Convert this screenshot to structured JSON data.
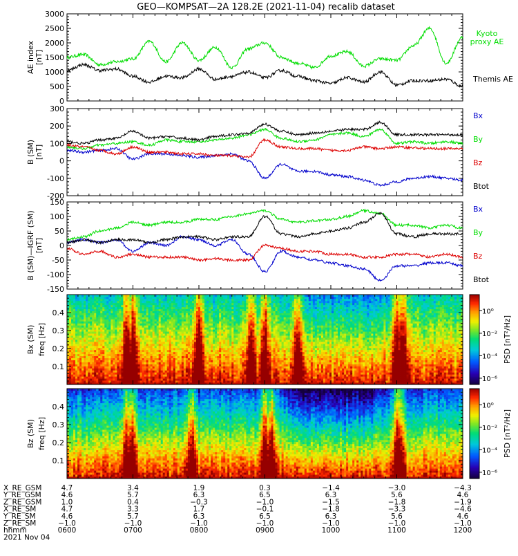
{
  "title": "GEO—KOMPSAT—2A 128.2E (2021-11-04) recalib dataset",
  "chart_data": [
    {
      "type": "line",
      "panel": "ae-index",
      "ylabel_lines": [
        "AE index",
        "[nT]"
      ],
      "ylim": [
        0,
        3000
      ],
      "yticks": [
        0,
        500,
        1000,
        1500,
        2000,
        2500,
        3000
      ],
      "series": [
        {
          "name_lines": [
            "Kyoto",
            "proxy AE"
          ],
          "color": "#00dd00",
          "x": [
            6.0,
            6.25,
            6.5,
            6.75,
            7.0,
            7.25,
            7.5,
            7.75,
            8.0,
            8.25,
            8.5,
            8.75,
            9.0,
            9.25,
            9.5,
            9.75,
            10.0,
            10.25,
            10.5,
            10.75,
            11.0,
            11.25,
            11.5,
            11.75,
            12.0
          ],
          "values": [
            1500,
            1600,
            1250,
            1350,
            1450,
            2050,
            1350,
            2000,
            1400,
            1850,
            1150,
            1800,
            2000,
            1500,
            1300,
            1150,
            1550,
            1700,
            1200,
            1450,
            1400,
            1900,
            2500,
            1300,
            2200
          ]
        },
        {
          "name_lines": [
            "Themis AE"
          ],
          "color": "#000000",
          "x": [
            6.0,
            6.25,
            6.5,
            6.75,
            7.0,
            7.25,
            7.5,
            7.75,
            8.0,
            8.25,
            8.5,
            8.75,
            9.0,
            9.25,
            9.5,
            9.75,
            10.0,
            10.25,
            10.5,
            10.75,
            11.0,
            11.25,
            11.5,
            11.75,
            12.0
          ],
          "values": [
            1050,
            1250,
            1050,
            1100,
            850,
            650,
            850,
            800,
            1100,
            750,
            850,
            1000,
            800,
            1050,
            850,
            700,
            600,
            800,
            650,
            1000,
            550,
            700,
            700,
            750,
            500
          ]
        }
      ]
    },
    {
      "type": "line",
      "panel": "b-sm",
      "ylabel_lines": [
        "B (SM)",
        "[nT]"
      ],
      "ylim": [
        -200,
        300
      ],
      "yticks": [
        -200,
        -100,
        0,
        100,
        200,
        300
      ],
      "series": [
        {
          "name": "Bx",
          "color": "#0000cc",
          "x": [
            6.0,
            6.25,
            6.5,
            6.75,
            7.0,
            7.25,
            7.5,
            7.75,
            8.0,
            8.25,
            8.5,
            8.75,
            9.0,
            9.25,
            9.5,
            9.75,
            10.0,
            10.25,
            10.5,
            10.75,
            11.0,
            11.25,
            11.5,
            11.75,
            12.0
          ],
          "values": [
            60,
            50,
            60,
            70,
            10,
            40,
            40,
            30,
            20,
            30,
            40,
            0,
            -100,
            -20,
            -60,
            -60,
            -80,
            -90,
            -110,
            -140,
            -120,
            -100,
            -90,
            -100,
            -110
          ]
        },
        {
          "name": "By",
          "color": "#00dd00",
          "x": [
            6.0,
            6.25,
            6.5,
            6.75,
            7.0,
            7.25,
            7.5,
            7.75,
            8.0,
            8.25,
            8.5,
            8.75,
            9.0,
            9.25,
            9.5,
            9.75,
            10.0,
            10.25,
            10.5,
            10.75,
            11.0,
            11.25,
            11.5,
            11.75,
            12.0
          ],
          "values": [
            80,
            70,
            90,
            100,
            110,
            90,
            120,
            110,
            110,
            120,
            130,
            150,
            180,
            130,
            110,
            120,
            150,
            160,
            140,
            180,
            100,
            110,
            100,
            110,
            100
          ]
        },
        {
          "name": "Bz",
          "color": "#dd0000",
          "x": [
            6.0,
            6.25,
            6.5,
            6.75,
            7.0,
            7.25,
            7.5,
            7.75,
            8.0,
            8.25,
            8.5,
            8.75,
            9.0,
            9.25,
            9.5,
            9.75,
            10.0,
            10.25,
            10.5,
            10.75,
            11.0,
            11.25,
            11.5,
            11.75,
            12.0
          ],
          "values": [
            90,
            80,
            60,
            40,
            80,
            50,
            50,
            40,
            40,
            30,
            30,
            20,
            120,
            80,
            70,
            70,
            60,
            60,
            80,
            70,
            80,
            75,
            70,
            70,
            70
          ]
        },
        {
          "name": "Btot",
          "color": "#000000",
          "x": [
            6.0,
            6.25,
            6.5,
            6.75,
            7.0,
            7.25,
            7.5,
            7.75,
            8.0,
            8.25,
            8.5,
            8.75,
            9.0,
            9.25,
            9.5,
            9.75,
            10.0,
            10.25,
            10.5,
            10.75,
            11.0,
            11.25,
            11.5,
            11.75,
            12.0
          ],
          "values": [
            110,
            100,
            120,
            130,
            170,
            130,
            140,
            130,
            120,
            140,
            150,
            160,
            210,
            170,
            150,
            160,
            170,
            180,
            180,
            220,
            150,
            150,
            150,
            150,
            150
          ]
        }
      ]
    },
    {
      "type": "line",
      "panel": "b-minus-igrf",
      "ylabel_lines": [
        "B (SM)—IGRF (SM)",
        "[nT]"
      ],
      "ylim": [
        -150,
        150
      ],
      "yticks": [
        -150,
        -100,
        -50,
        0,
        50,
        100,
        150
      ],
      "series": [
        {
          "name": "Bx",
          "color": "#0000cc",
          "x": [
            6.0,
            6.25,
            6.5,
            6.75,
            7.0,
            7.25,
            7.5,
            7.75,
            8.0,
            8.25,
            8.5,
            8.75,
            9.0,
            9.25,
            9.5,
            9.75,
            10.0,
            10.25,
            10.5,
            10.75,
            11.0,
            11.25,
            11.5,
            11.75,
            12.0
          ],
          "values": [
            10,
            20,
            10,
            20,
            -20,
            10,
            0,
            30,
            20,
            0,
            20,
            -30,
            -90,
            -20,
            -40,
            -50,
            -60,
            -70,
            -80,
            -120,
            -70,
            -70,
            -60,
            -60,
            -70
          ]
        },
        {
          "name": "By",
          "color": "#00dd00",
          "x": [
            6.0,
            6.25,
            6.5,
            6.75,
            7.0,
            7.25,
            7.5,
            7.75,
            8.0,
            8.25,
            8.5,
            8.75,
            9.0,
            9.25,
            9.5,
            9.75,
            10.0,
            10.25,
            10.5,
            10.75,
            11.0,
            11.25,
            11.5,
            11.75,
            12.0
          ],
          "values": [
            20,
            30,
            50,
            60,
            80,
            70,
            80,
            80,
            90,
            90,
            100,
            110,
            120,
            90,
            80,
            85,
            90,
            100,
            120,
            110,
            70,
            70,
            60,
            70,
            60
          ]
        },
        {
          "name": "Bz",
          "color": "#dd0000",
          "x": [
            6.0,
            6.25,
            6.5,
            6.75,
            7.0,
            7.25,
            7.5,
            7.75,
            8.0,
            8.25,
            8.5,
            8.75,
            9.0,
            9.25,
            9.5,
            9.75,
            10.0,
            10.25,
            10.5,
            10.75,
            11.0,
            11.25,
            11.5,
            11.75,
            12.0
          ],
          "values": [
            -10,
            -30,
            -20,
            -40,
            -30,
            -40,
            -40,
            -40,
            -50,
            -45,
            -50,
            -50,
            0,
            -10,
            -20,
            -20,
            -30,
            -30,
            -40,
            -40,
            -30,
            -30,
            -40,
            -30,
            -40
          ]
        },
        {
          "name": "Btot",
          "color": "#000000",
          "x": [
            6.0,
            6.25,
            6.5,
            6.75,
            7.0,
            7.25,
            7.5,
            7.75,
            8.0,
            8.25,
            8.5,
            8.75,
            9.0,
            9.25,
            9.5,
            9.75,
            10.0,
            10.25,
            10.5,
            10.75,
            11.0,
            11.25,
            11.5,
            11.75,
            12.0
          ],
          "values": [
            10,
            20,
            10,
            20,
            20,
            10,
            20,
            30,
            30,
            20,
            30,
            30,
            100,
            40,
            30,
            40,
            50,
            60,
            80,
            110,
            40,
            30,
            40,
            40,
            40
          ]
        }
      ]
    },
    {
      "type": "heatmap",
      "panel": "bx-spectrogram",
      "ylabel_lines": [
        "Bx (SM)",
        "freq [Hz]"
      ],
      "ylim": [
        0,
        0.5
      ],
      "yticks": [
        0.1,
        0.2,
        0.3,
        0.4
      ],
      "ytick_labels": [
        "0.1",
        "0.2",
        "0.3",
        "0.4"
      ],
      "colorbar_label": "PSD [nT²/Hz]",
      "colorbar_ticks": [
        "10⁰",
        "10⁻²",
        "10⁻⁴",
        "10⁻⁶"
      ],
      "activity_hours": [
        6.9,
        7.0,
        8.0,
        8.8,
        9.0,
        9.5,
        11.0,
        11.1
      ],
      "quiet_hours": [
        9.7,
        10.0,
        10.3,
        10.6
      ]
    },
    {
      "type": "heatmap",
      "panel": "bz-spectrogram",
      "ylabel_lines": [
        "Bz (SM)",
        "freq [Hz]"
      ],
      "ylim": [
        0,
        0.5
      ],
      "yticks": [
        0.1,
        0.2,
        0.3,
        0.4
      ],
      "ytick_labels": [
        "0.1",
        "0.2",
        "0.3",
        "0.4"
      ],
      "colorbar_label": "PSD [nT²/Hz]",
      "colorbar_ticks": [
        "10⁰",
        "10⁻²",
        "10⁻⁴",
        "10⁻⁶"
      ],
      "activity_hours": [
        6.9,
        7.0,
        7.9,
        9.0,
        9.1,
        11.0,
        11.05
      ],
      "quiet_hours": [
        9.6,
        9.9,
        10.2,
        10.5
      ]
    }
  ],
  "xaxis": {
    "hours": [
      6,
      7,
      8,
      9,
      10,
      11,
      12
    ],
    "row_labels": [
      "X_RE_GSM",
      "Y_RE_GSM",
      "Z_RE_GSM",
      "X_RE_SM",
      "Y_RE_SM",
      "Z_RE_SM",
      "hhmm"
    ],
    "rows": [
      [
        "4.7",
        "3.4",
        "1.9",
        "0.3",
        "−1.4",
        "−3.0",
        "−4.3"
      ],
      [
        "4.6",
        "5.7",
        "6.3",
        "6.5",
        "6.3",
        "5.6",
        "4.6"
      ],
      [
        "1.0",
        "0.4",
        "−0.3",
        "−1.0",
        "−1.5",
        "−1.8",
        "−1.9"
      ],
      [
        "4.7",
        "3.3",
        "1.7",
        "−0.1",
        "−1.8",
        "−3.3",
        "−4.6"
      ],
      [
        "4.6",
        "5.7",
        "6.3",
        "6.5",
        "6.3",
        "5.6",
        "4.6"
      ],
      [
        "−1.0",
        "−1.0",
        "−1.0",
        "−1.0",
        "−1.0",
        "−1.0",
        "−1.0"
      ],
      [
        "0600",
        "0700",
        "0800",
        "0900",
        "1000",
        "1100",
        "1200"
      ]
    ],
    "date": "2021 Nov 04"
  }
}
